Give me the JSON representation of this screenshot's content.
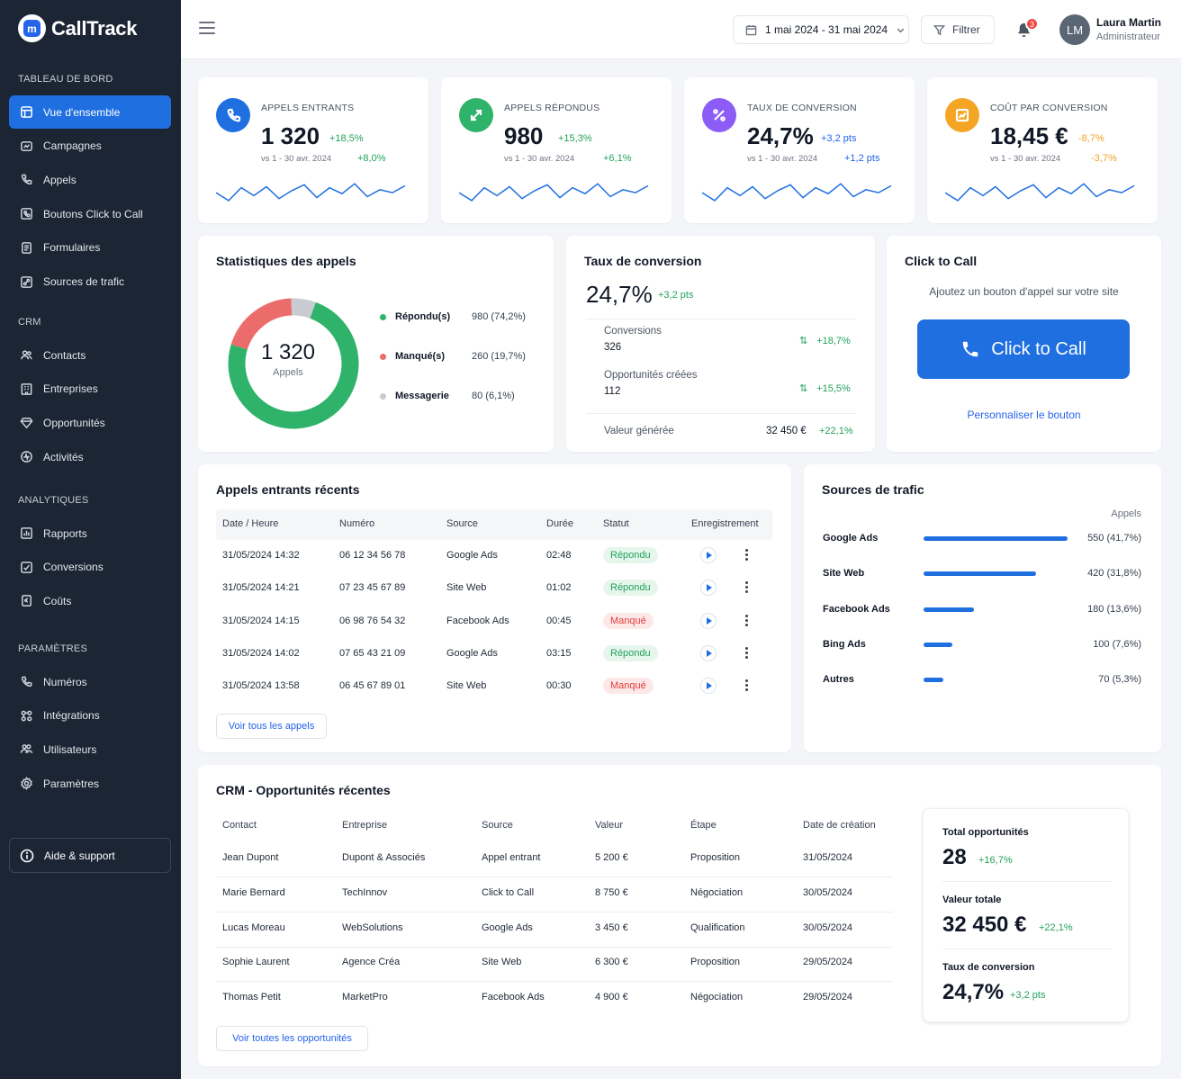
{
  "app": {
    "name": "CallTrack",
    "logo_glyph": "m"
  },
  "sidebar": {
    "sections": [
      {
        "title": "TABLEAU DE BORD",
        "items": [
          {
            "label": "Vue d'ensemble",
            "icon": "dashboard-icon",
            "active": true
          },
          {
            "label": "Campagnes",
            "icon": "megaphone-icon"
          },
          {
            "label": "Appels",
            "icon": "phone-icon"
          },
          {
            "label": "Boutons Click to Call",
            "icon": "phone-click-icon"
          },
          {
            "label": "Formulaires",
            "icon": "form-icon"
          },
          {
            "label": "Sources de trafic",
            "icon": "traffic-icon"
          }
        ]
      },
      {
        "title": "CRM",
        "items": [
          {
            "label": "Contacts",
            "icon": "users-icon"
          },
          {
            "label": "Entreprises",
            "icon": "building-icon"
          },
          {
            "label": "Opportunités",
            "icon": "diamond-icon"
          },
          {
            "label": "Activités",
            "icon": "activity-icon"
          }
        ]
      },
      {
        "title": "ANALYTIQUES",
        "items": [
          {
            "label": "Rapports",
            "icon": "chart-icon"
          },
          {
            "label": "Conversions",
            "icon": "conversion-icon"
          },
          {
            "label": "Coûts",
            "icon": "cost-icon"
          }
        ]
      },
      {
        "title": "PARAMÈTRES",
        "items": [
          {
            "label": "Numéros",
            "icon": "phone-icon"
          },
          {
            "label": "Intégrations",
            "icon": "integrations-icon"
          },
          {
            "label": "Utilisateurs",
            "icon": "user-group-icon"
          },
          {
            "label": "Paramètres",
            "icon": "gear-icon"
          }
        ]
      }
    ],
    "help_label": "Aide & support"
  },
  "topbar": {
    "date_range": "1 mai 2024 - 31 mai 2024",
    "filter_label": "Filtrer",
    "notifications_count": "3",
    "user_initials": "LM",
    "user_name": "Laura Martin",
    "user_role": "Administrateur"
  },
  "kpis": [
    {
      "label": "APPELS ENTRANTS",
      "value": "1 320",
      "delta": "+18,5%",
      "vs": "vs 1 - 30 avr. 2024",
      "vs_delta": "+8,0%",
      "color": "#1f6fe0",
      "icon": "phone-icon",
      "delta_color": "green"
    },
    {
      "label": "APPELS RÉPONDUS",
      "value": "980",
      "delta": "+15,3%",
      "vs": "vs 1 - 30 avr. 2024",
      "vs_delta": "+6,1%",
      "color": "#2fb36a",
      "icon": "transfer-icon",
      "delta_color": "green"
    },
    {
      "label": "TAUX DE CONVERSION",
      "value": "24,7%",
      "delta": "+3,2 pts",
      "vs": "vs 1 - 30 avr. 2024",
      "vs_delta": "+1,2 pts",
      "color": "#8b5cf6",
      "icon": "percent-icon",
      "delta_color": "blue"
    },
    {
      "label": "COÛT PAR CONVERSION",
      "value": "18,45 €",
      "delta": "-8,7%",
      "vs": "vs 1 - 30 avr. 2024",
      "vs_delta": "-3,7%",
      "color": "#f5a524",
      "icon": "cost-chart-icon",
      "delta_color": "orange"
    }
  ],
  "call_stats": {
    "title": "Statistiques des appels",
    "total": "1 320",
    "total_label": "Appels",
    "legend": [
      {
        "name": "Répondu(s)",
        "value": "980 (74,2%)",
        "color": "#2fb36a",
        "share": 74.2
      },
      {
        "name": "Manqué(s)",
        "value": "260 (19,7%)",
        "color": "#ec6b6b",
        "share": 19.7
      },
      {
        "name": "Messagerie",
        "value": "80 (6,1%)",
        "color": "#c8ccd2",
        "share": 6.1
      }
    ]
  },
  "conversion": {
    "title": "Taux de conversion",
    "value": "24,7%",
    "delta": "+3,2 pts",
    "rows": [
      {
        "label": "Conversions",
        "value": "326",
        "delta": "+18,7%"
      },
      {
        "label": "Opportunités créées",
        "value": "112",
        "delta": "+15,5%"
      }
    ],
    "generated_label": "Valeur générée",
    "generated_value": "32 450 €",
    "generated_delta": "+22,1%"
  },
  "click_to_call": {
    "title": "Click to Call",
    "subtitle": "Ajoutez un bouton d'appel sur votre site",
    "button_label": "Click to Call",
    "customize_link": "Personnaliser le bouton"
  },
  "recent_calls": {
    "title": "Appels entrants récents",
    "columns": [
      "Date / Heure",
      "Numéro",
      "Source",
      "Durée",
      "Statut",
      "Enregistrement"
    ],
    "rows": [
      {
        "date": "31/05/2024 14:32",
        "number": "06 12 34 56 78",
        "source": "Google Ads",
        "duration": "02:48",
        "status": "Répondu",
        "ok": true
      },
      {
        "date": "31/05/2024 14:21",
        "number": "07 23 45 67 89",
        "source": "Site Web",
        "duration": "01:02",
        "status": "Répondu",
        "ok": true
      },
      {
        "date": "31/05/2024 14:15",
        "number": "06 98 76 54 32",
        "source": "Facebook Ads",
        "duration": "00:45",
        "status": "Manqué",
        "ok": false
      },
      {
        "date": "31/05/2024 14:02",
        "number": "07 65 43 21 09",
        "source": "Google Ads",
        "duration": "03:15",
        "status": "Répondu",
        "ok": true
      },
      {
        "date": "31/05/2024 13:58",
        "number": "06 45 67 89 01",
        "source": "Site Web",
        "duration": "00:30",
        "status": "Manqué",
        "ok": false
      }
    ],
    "view_all": "Voir tous les appels"
  },
  "traffic_sources": {
    "title": "Sources de trafic",
    "column": "Appels",
    "rows": [
      {
        "name": "Google Ads",
        "value": "550 (41,7%)",
        "share": 1.0
      },
      {
        "name": "Site Web",
        "value": "420 (31,8%)",
        "share": 0.78
      },
      {
        "name": "Facebook Ads",
        "value": "180 (13,6%)",
        "share": 0.35
      },
      {
        "name": "Bing Ads",
        "value": "100 (7,6%)",
        "share": 0.2
      },
      {
        "name": "Autres",
        "value": "70 (5,3%)",
        "share": 0.14
      }
    ]
  },
  "crm": {
    "title": "CRM - Opportunités récentes",
    "columns": [
      "Contact",
      "Entreprise",
      "Source",
      "Valeur",
      "Étape",
      "Date de création"
    ],
    "rows": [
      [
        "Jean Dupont",
        "Dupont & Associés",
        "Appel entrant",
        "5 200 €",
        "Proposition",
        "31/05/2024"
      ],
      [
        "Marie Bernard",
        "TechInnov",
        "Click to Call",
        "8 750 €",
        "Négociation",
        "30/05/2024"
      ],
      [
        "Lucas Moreau",
        "WebSolutions",
        "Google Ads",
        "3 450 €",
        "Qualification",
        "30/05/2024"
      ],
      [
        "Sophie Laurent",
        "Agence Créa",
        "Site Web",
        "6 300 €",
        "Proposition",
        "29/05/2024"
      ],
      [
        "Thomas Petit",
        "MarketPro",
        "Facebook Ads",
        "4 900 €",
        "Négociation",
        "29/05/2024"
      ]
    ],
    "view_all": "Voir toutes les opportunités",
    "summary": [
      {
        "label": "Total opportunités",
        "value": "28",
        "delta": "+16,7%"
      },
      {
        "label": "Valeur totale",
        "value": "32 450 €",
        "delta": "+22,1%"
      },
      {
        "label": "Taux de conversion",
        "value": "24,7%",
        "delta": "+3,2 pts"
      }
    ]
  }
}
